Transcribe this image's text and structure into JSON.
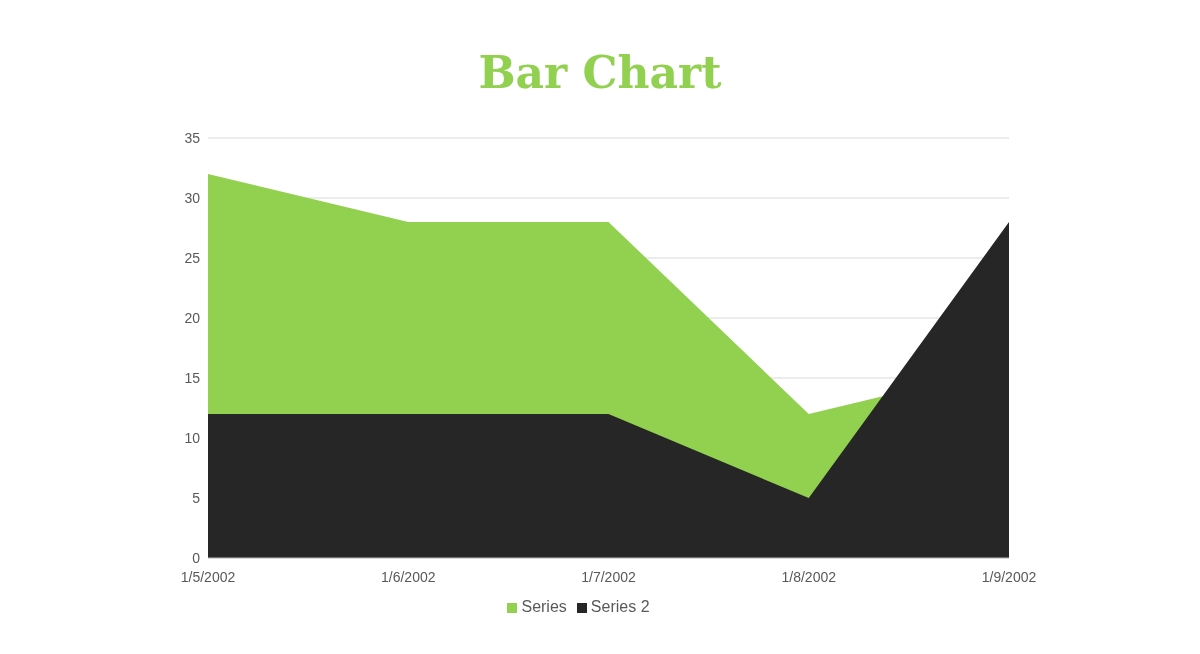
{
  "chart_data": {
    "type": "area",
    "title": "Bar Chart",
    "categories": [
      "1/5/2002",
      "1/6/2002",
      "1/7/2002",
      "1/8/2002",
      "1/9/2002"
    ],
    "series": [
      {
        "name": "Series",
        "color": "#92d050",
        "values": [
          32,
          28,
          28,
          12,
          16
        ]
      },
      {
        "name": "Series 2",
        "color": "#262626",
        "values": [
          12,
          12,
          12,
          5,
          28
        ]
      }
    ],
    "ylim": [
      0,
      35
    ],
    "yticks": [
      0,
      5,
      10,
      15,
      20,
      25,
      30,
      35
    ],
    "grid": "y",
    "legend": "bottom"
  }
}
